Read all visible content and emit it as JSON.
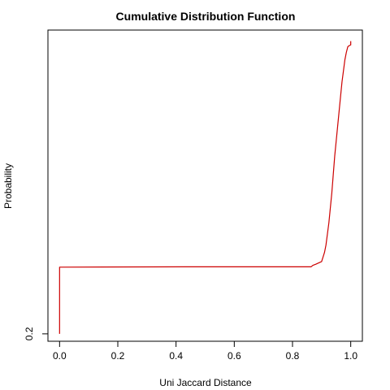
{
  "chart_data": {
    "type": "line",
    "title": "Cumulative Distribution Function",
    "xlabel": "Uni Jaccard Distance",
    "ylabel": "Probability",
    "xlim": [
      -0.04,
      1.04
    ],
    "ylim": [
      0.18,
      1.02
    ],
    "x_ticks": [
      0.0,
      0.2,
      0.4,
      0.6,
      0.8,
      1.0
    ],
    "x_tick_labels": [
      "0.0",
      "0.2",
      "0.4",
      "0.6",
      "0.8",
      "1.0"
    ],
    "y_ticks": [
      0.2
    ],
    "y_tick_labels": [
      "0.2"
    ],
    "grid": false,
    "series": [
      {
        "color": "#cc0000",
        "x": [
          0.0,
          0.0,
          0.0,
          0.43,
          0.864,
          0.87,
          0.88,
          0.9,
          0.91,
          0.915,
          0.92,
          0.925,
          0.93,
          0.935,
          0.94,
          0.945,
          0.95,
          0.955,
          0.96,
          0.965,
          0.97,
          0.975,
          0.98,
          0.985,
          0.99,
          0.995,
          1.0,
          1.0
        ],
        "y": [
          0.2,
          0.38,
          0.38,
          0.381,
          0.381,
          0.385,
          0.388,
          0.395,
          0.42,
          0.44,
          0.47,
          0.5,
          0.54,
          0.58,
          0.63,
          0.68,
          0.72,
          0.76,
          0.8,
          0.84,
          0.88,
          0.91,
          0.94,
          0.96,
          0.975,
          0.978,
          0.98,
          0.99
        ]
      }
    ]
  }
}
